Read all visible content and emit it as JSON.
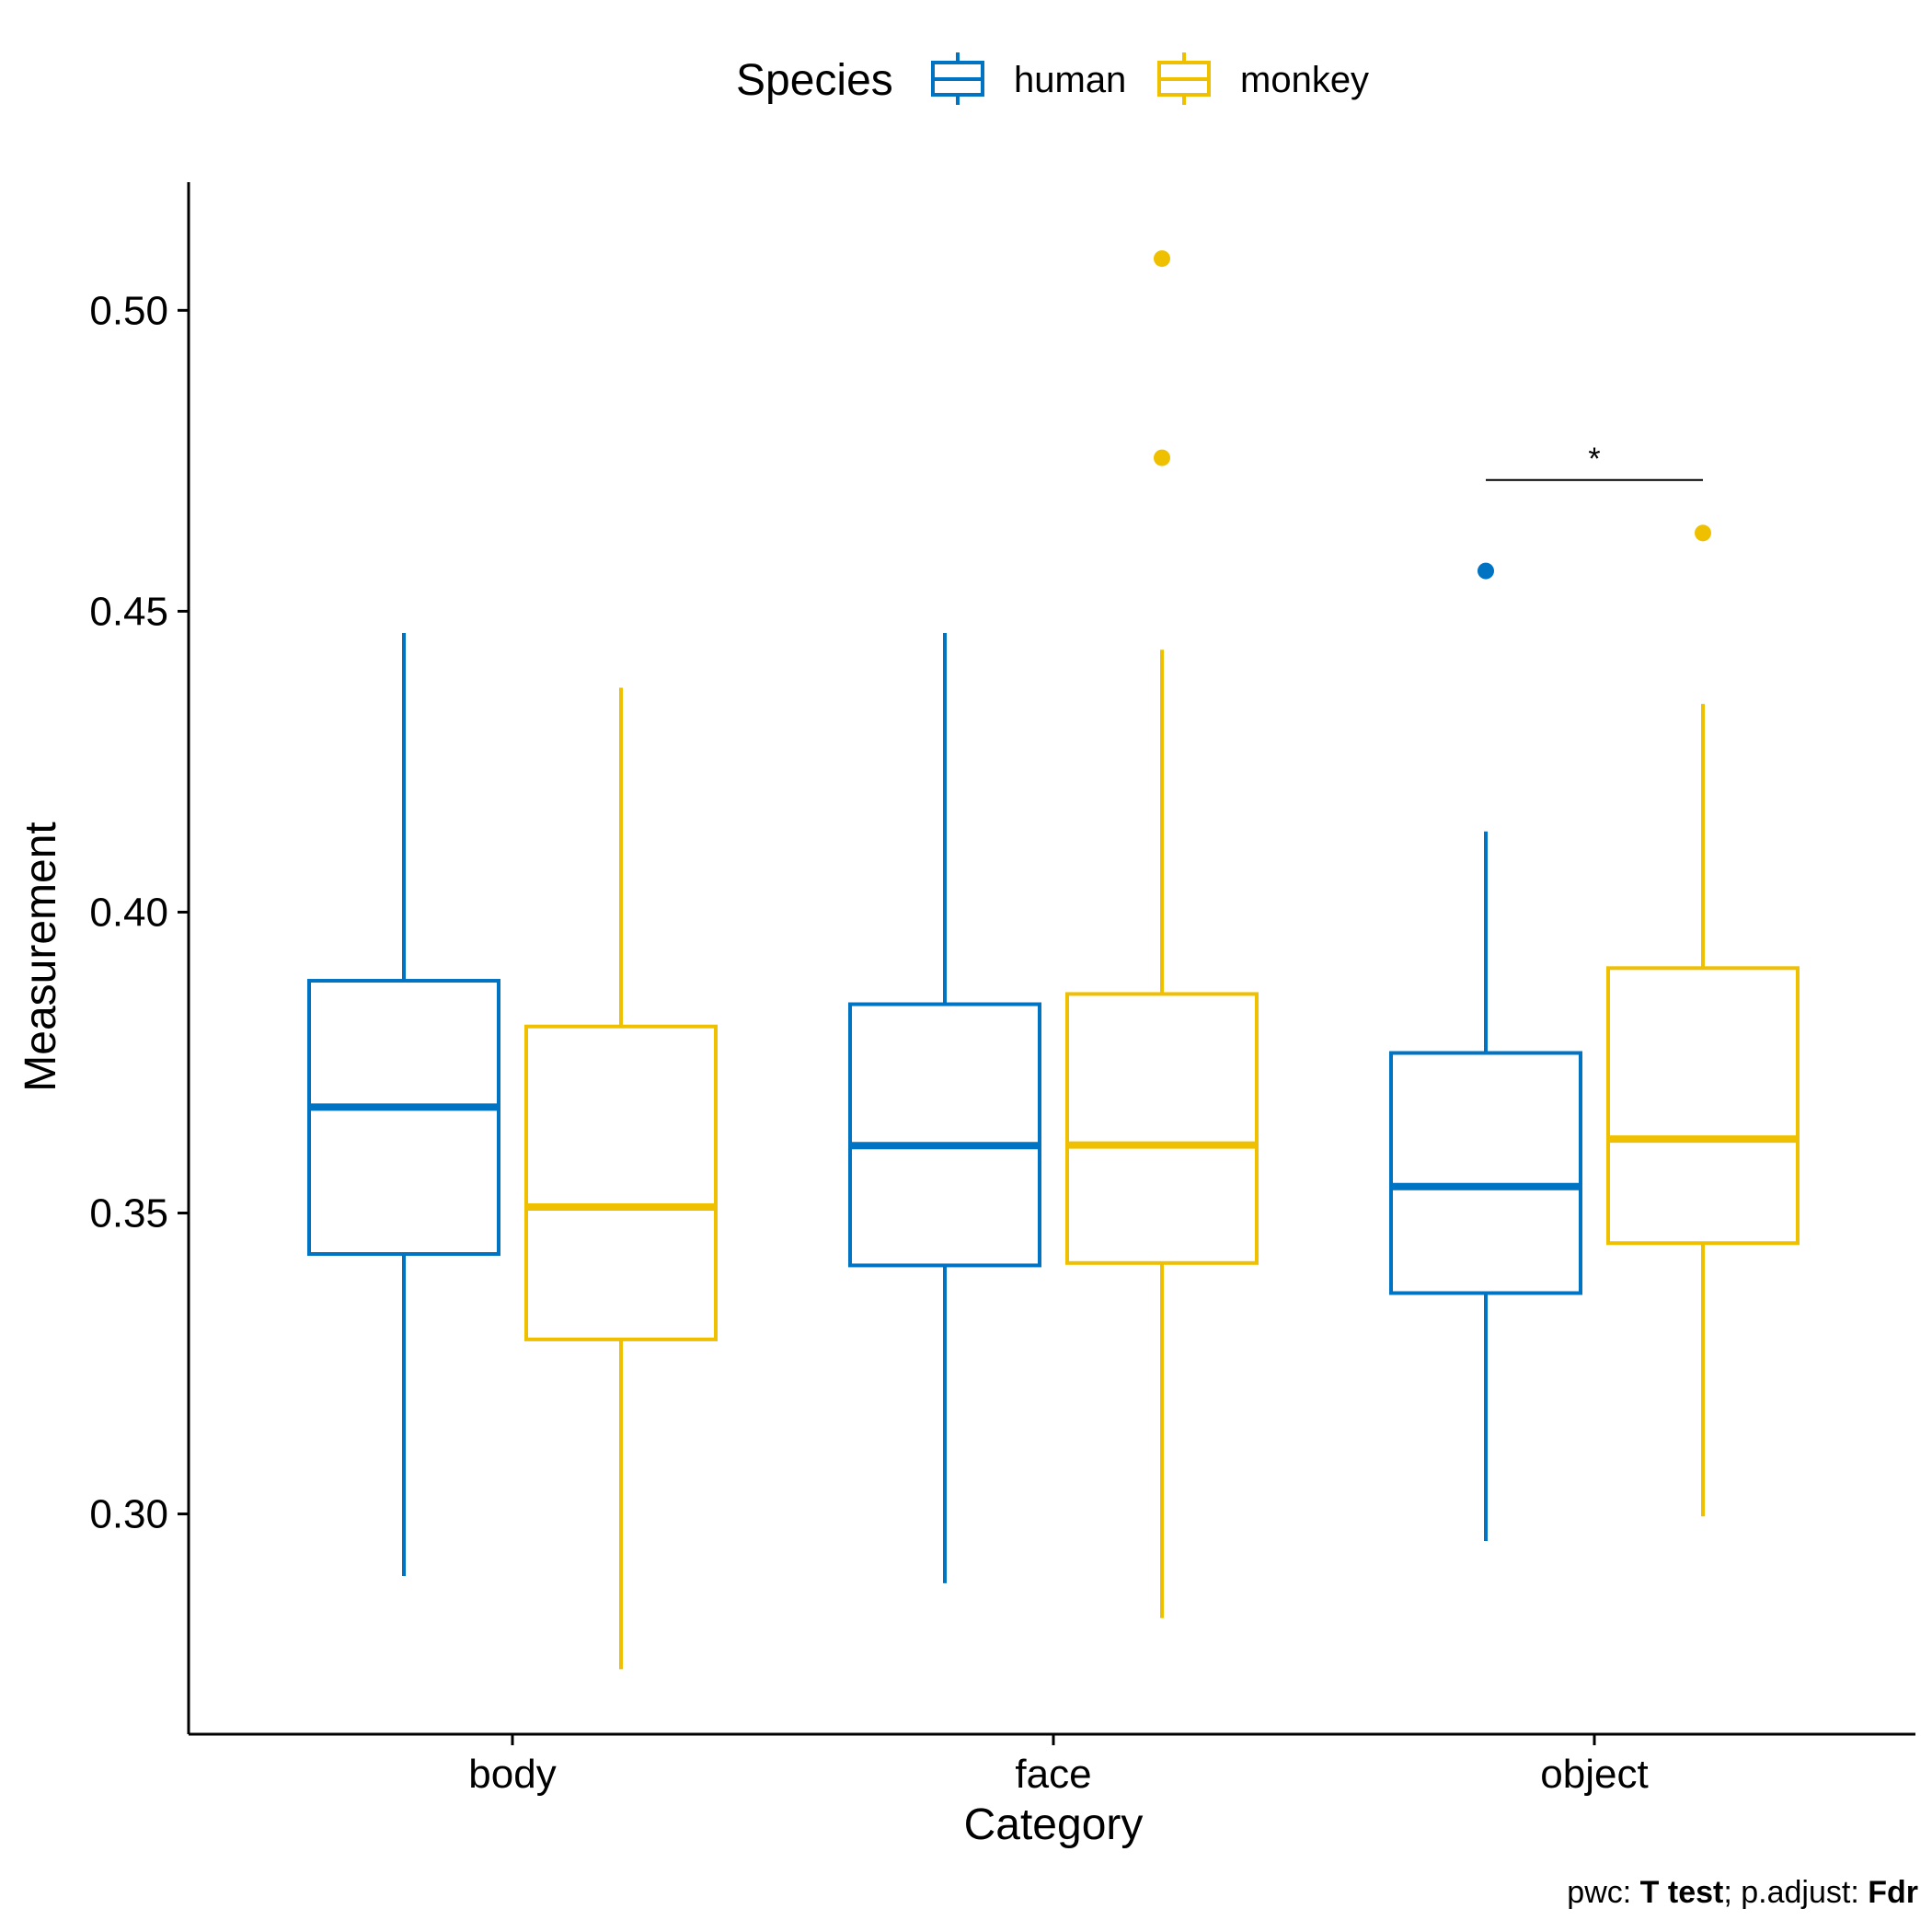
{
  "chart_data": {
    "type": "boxplot",
    "categories": [
      "body",
      "face",
      "object"
    ],
    "xlabel": "Category",
    "ylabel": "Measurement",
    "ylim": [
      0.2634,
      0.5213
    ],
    "yticks": [
      0.3,
      0.35,
      0.4,
      0.45,
      0.5
    ],
    "ytick_labels": [
      "0.30",
      "0.35",
      "0.40",
      "0.45",
      "0.50"
    ],
    "legend": {
      "title": "Species",
      "position": "top"
    },
    "series": [
      {
        "name": "human",
        "color": "#0073C2",
        "boxes": [
          {
            "category": "body",
            "whisker_low": 0.2897,
            "q1": 0.3432,
            "median": 0.3676,
            "q3": 0.3886,
            "whisker_high": 0.4464,
            "outliers": []
          },
          {
            "category": "face",
            "whisker_low": 0.2885,
            "q1": 0.3413,
            "median": 0.3612,
            "q3": 0.3847,
            "whisker_high": 0.4464,
            "outliers": []
          },
          {
            "category": "object",
            "whisker_low": 0.2955,
            "q1": 0.3367,
            "median": 0.3544,
            "q3": 0.3766,
            "whisker_high": 0.4134,
            "outliers": [
              0.4567
            ]
          }
        ]
      },
      {
        "name": "monkey",
        "color": "#EFC000",
        "boxes": [
          {
            "category": "body",
            "whisker_low": 0.2742,
            "q1": 0.329,
            "median": 0.351,
            "q3": 0.381,
            "whisker_high": 0.4373,
            "outliers": []
          },
          {
            "category": "face",
            "whisker_low": 0.2827,
            "q1": 0.3417,
            "median": 0.3613,
            "q3": 0.3864,
            "whisker_high": 0.4436,
            "outliers": [
              0.5086,
              0.4755
            ]
          },
          {
            "category": "object",
            "whisker_low": 0.2996,
            "q1": 0.345,
            "median": 0.3623,
            "q3": 0.3907,
            "whisker_high": 0.4346,
            "outliers": [
              0.463
            ]
          }
        ]
      }
    ],
    "annotations": [
      {
        "category": "object",
        "from_series": "human",
        "to_series": "monkey",
        "y": 0.4718,
        "label": "*"
      }
    ],
    "caption": {
      "prefix": "pwc: ",
      "test": "T test",
      "middle": "; p.adjust: ",
      "method": "Fdr"
    }
  }
}
